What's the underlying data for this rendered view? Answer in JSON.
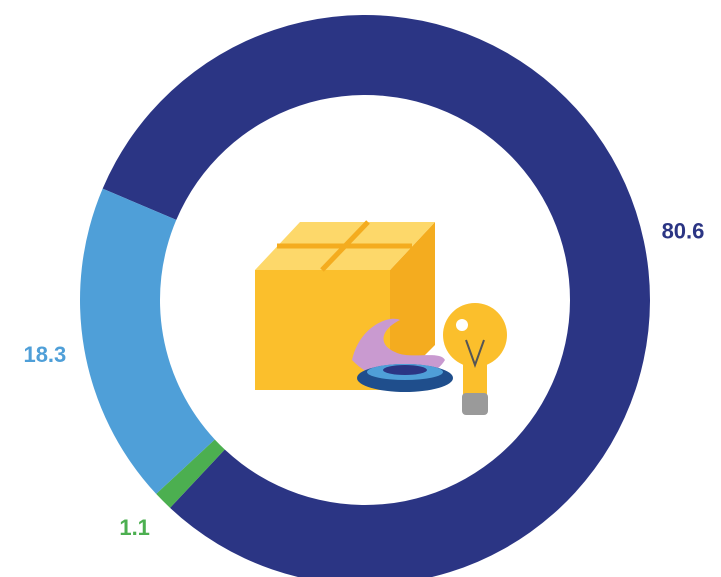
{
  "chart_data": {
    "type": "donut",
    "values": [
      80.6,
      1.1,
      18.3
    ],
    "colors": [
      "#2b3584",
      "#4caf50",
      "#4f9fd8"
    ]
  }
}
